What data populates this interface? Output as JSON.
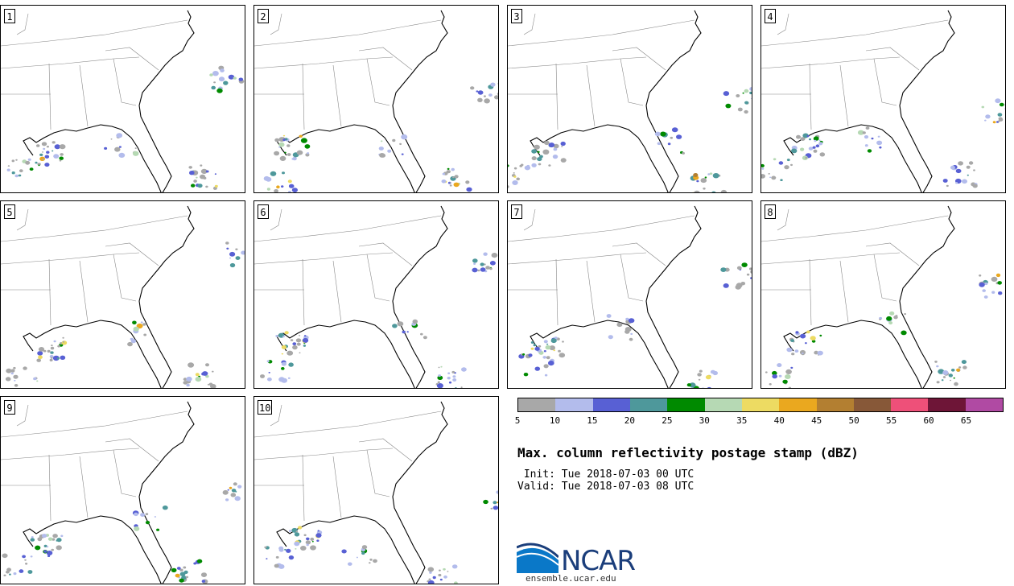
{
  "panels": [
    {
      "label": "1"
    },
    {
      "label": "2"
    },
    {
      "label": "3"
    },
    {
      "label": "4"
    },
    {
      "label": "5"
    },
    {
      "label": "6"
    },
    {
      "label": "7"
    },
    {
      "label": "8"
    },
    {
      "label": "9"
    },
    {
      "label": "10"
    }
  ],
  "colorbar": {
    "colors": [
      "#a8a8a8",
      "#b3bcec",
      "#5860d4",
      "#4e989b",
      "#008a00",
      "#b6d9b4",
      "#eddb62",
      "#eaa81f",
      "#b37f31",
      "#875838",
      "#ee5079",
      "#6e1537",
      "#b04aa3"
    ],
    "ticks": [
      "5",
      "10",
      "15",
      "20",
      "25",
      "30",
      "35",
      "40",
      "45",
      "50",
      "55",
      "60",
      "65"
    ]
  },
  "title": "Max. column reflectivity postage stamp (dBZ)",
  "init_text": " Init: Tue 2018-07-03 00 UTC",
  "valid_text": "Valid: Tue 2018-07-03 08 UTC",
  "logo": {
    "text": "NCAR",
    "url": "ensemble.ucar.edu"
  }
}
